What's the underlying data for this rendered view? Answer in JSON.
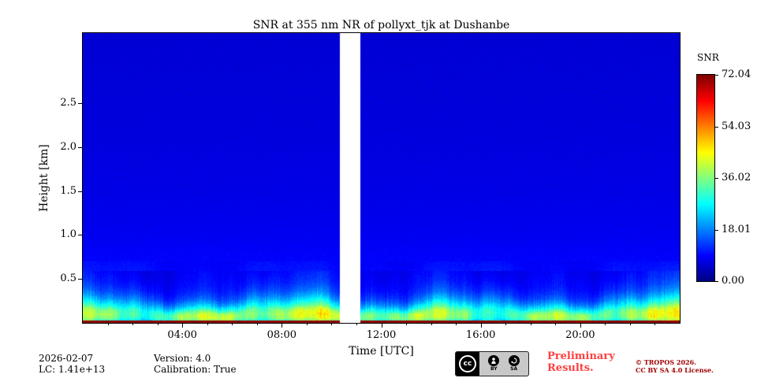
{
  "chart_data": {
    "type": "heatmap",
    "title": "SNR at 355 nm NR of pollyxt_tjk at Dushanbe",
    "xlabel": "Time [UTC]",
    "ylabel": "Height [km]",
    "x_range_hours": [
      0,
      24
    ],
    "x_ticks": [
      {
        "hour": 4,
        "label": "04:00"
      },
      {
        "hour": 8,
        "label": "08:00"
      },
      {
        "hour": 12,
        "label": "12:00"
      },
      {
        "hour": 16,
        "label": "16:00"
      },
      {
        "hour": 20,
        "label": "20:00"
      }
    ],
    "x_minor_tick_every_hours": 1,
    "y_range_km": [
      0,
      3.3
    ],
    "y_ticks": [
      {
        "km": 0.5,
        "label": "0.5"
      },
      {
        "km": 1.0,
        "label": "1.0"
      },
      {
        "km": 1.5,
        "label": "1.5"
      },
      {
        "km": 2.0,
        "label": "2.0"
      },
      {
        "km": 2.5,
        "label": "2.5"
      }
    ],
    "colorbar": {
      "label": "SNR",
      "min": 0,
      "max": 72.04,
      "colormap": "jet",
      "ticks": [
        {
          "value": 72.04,
          "label": "72.04"
        },
        {
          "value": 54.03,
          "label": "54.03"
        },
        {
          "value": 36.02,
          "label": "36.02"
        },
        {
          "value": 18.01,
          "label": "18.01"
        },
        {
          "value": 0,
          "label": "0.00"
        }
      ]
    },
    "data_gap_hours": [
      10.33,
      11.13
    ],
    "snr_profile": [
      [
        0.0,
        71
      ],
      [
        0.02,
        71
      ],
      [
        0.03,
        34
      ],
      [
        0.05,
        40
      ],
      [
        0.09,
        42
      ],
      [
        0.13,
        40
      ],
      [
        0.17,
        33
      ],
      [
        0.21,
        27
      ],
      [
        0.26,
        21
      ],
      [
        0.32,
        16
      ],
      [
        0.4,
        12.5
      ],
      [
        0.5,
        10.5
      ],
      [
        0.7,
        9
      ],
      [
        1.0,
        8
      ],
      [
        1.5,
        7.2
      ],
      [
        2.2,
        6.6
      ],
      [
        3.3,
        6.0
      ]
    ]
  },
  "footer": {
    "date": "2026-02-07",
    "lc": "LC: 1.41e+13",
    "version": "Version: 4.0",
    "calibration": "Calibration: True"
  },
  "license_badge": {
    "cc": "cc",
    "by": "BY",
    "sa": "SA"
  },
  "preliminary": {
    "line1": "Preliminary",
    "line2": "Results."
  },
  "copyright": {
    "line1": "© TROPOS 2026.",
    "line2": "CC BY SA 4.0 License."
  }
}
